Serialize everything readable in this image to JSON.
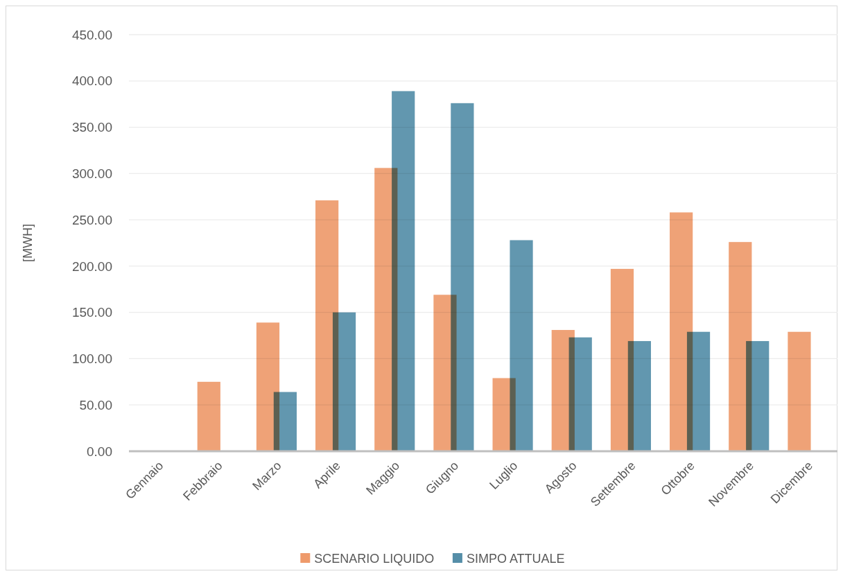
{
  "chart_data": {
    "type": "bar",
    "ylabel": "[MWH]",
    "categories": [
      "Gennaio",
      "Febbraio",
      "Marzo",
      "Aprile",
      "Maggio",
      "Giugno",
      "Luglio",
      "Agosto",
      "Settembre",
      "Ottobre",
      "Novembre",
      "Dicembre"
    ],
    "series": [
      {
        "name": "SCENARIO LIQUIDO",
        "color": "#ee9a6b",
        "values": [
          null,
          75,
          139,
          271,
          306,
          169,
          79,
          131,
          197,
          258,
          226,
          129
        ]
      },
      {
        "name": "SIMPO ATTUALE",
        "color": "#558ea8",
        "values": [
          null,
          null,
          64,
          150,
          389,
          376,
          228,
          123,
          119,
          129,
          119,
          null
        ]
      }
    ],
    "ylim": [
      0,
      450
    ],
    "yticks": [
      {
        "value": 0,
        "label": "0.00"
      },
      {
        "value": 50,
        "label": "50.00"
      },
      {
        "value": 100,
        "label": "100.00"
      },
      {
        "value": 150,
        "label": "150.00"
      },
      {
        "value": 200,
        "label": "200.00"
      },
      {
        "value": 250,
        "label": "250.00"
      },
      {
        "value": 300,
        "label": "300.00"
      },
      {
        "value": 350,
        "label": "350.00"
      },
      {
        "value": 400,
        "label": "400.00"
      },
      {
        "value": 450,
        "label": "450.00"
      }
    ],
    "grid": "y",
    "legend": "bottom"
  }
}
